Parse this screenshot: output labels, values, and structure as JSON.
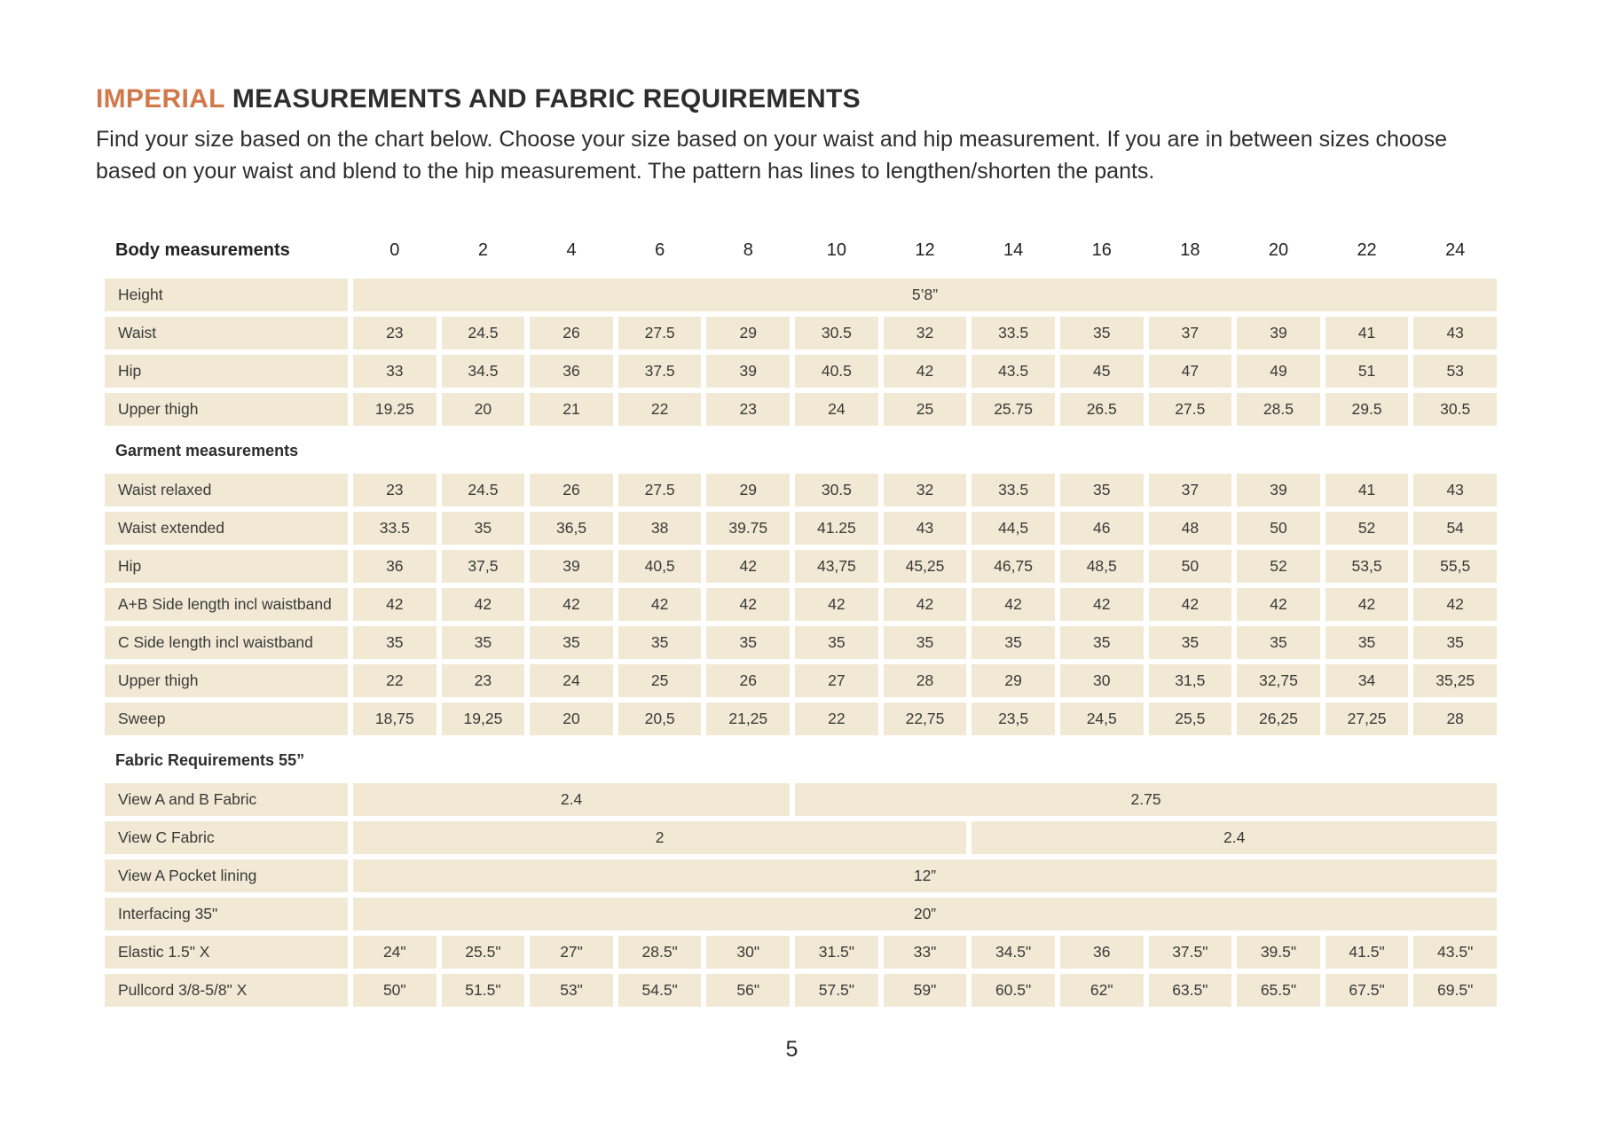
{
  "page": {
    "title_highlight": "IMPERIAL",
    "title_rest": " MEASUREMENTS AND FABRIC REQUIREMENTS",
    "intro": "Find your size based on the chart below. Choose your size based on your waist and hip measurement. If you are in between sizes choose based on your waist and blend to the hip measurement. The pattern has lines to lengthen/shorten the pants.",
    "page_number": "5"
  },
  "colors": {
    "accent_orange": "#d2794c",
    "cell_tan": "#f2e9d4",
    "text_dark": "#2d2d2d"
  },
  "table": {
    "header_label": "Body measurements",
    "sizes": [
      "0",
      "2",
      "4",
      "6",
      "8",
      "10",
      "12",
      "14",
      "16",
      "18",
      "20",
      "22",
      "24"
    ],
    "rows": [
      {
        "type": "span",
        "label": "Height",
        "spans": [
          {
            "cols": 13,
            "value": "5’8”"
          }
        ]
      },
      {
        "type": "cells",
        "label": "Waist",
        "values": [
          "23",
          "24.5",
          "26",
          "27.5",
          "29",
          "30.5",
          "32",
          "33.5",
          "35",
          "37",
          "39",
          "41",
          "43"
        ]
      },
      {
        "type": "cells",
        "label": "Hip",
        "values": [
          "33",
          "34.5",
          "36",
          "37.5",
          "39",
          "40.5",
          "42",
          "43.5",
          "45",
          "47",
          "49",
          "51",
          "53"
        ]
      },
      {
        "type": "cells",
        "label": "Upper thigh",
        "values": [
          "19.25",
          "20",
          "21",
          "22",
          "23",
          "24",
          "25",
          "25.75",
          "26.5",
          "27.5",
          "28.5",
          "29.5",
          "30.5"
        ]
      },
      {
        "type": "section",
        "label": "Garment measurements"
      },
      {
        "type": "cells",
        "label": "Waist relaxed",
        "values": [
          "23",
          "24.5",
          "26",
          "27.5",
          "29",
          "30.5",
          "32",
          "33.5",
          "35",
          "37",
          "39",
          "41",
          "43"
        ]
      },
      {
        "type": "cells",
        "label": "Waist extended",
        "values": [
          "33.5",
          "35",
          "36,5",
          "38",
          "39.75",
          "41.25",
          "43",
          "44,5",
          "46",
          "48",
          "50",
          "52",
          "54"
        ]
      },
      {
        "type": "cells",
        "label": "Hip",
        "values": [
          "36",
          "37,5",
          "39",
          "40,5",
          "42",
          "43,75",
          "45,25",
          "46,75",
          "48,5",
          "50",
          "52",
          "53,5",
          "55,5"
        ]
      },
      {
        "type": "cells",
        "label": "A+B Side length incl waistband",
        "values": [
          "42",
          "42",
          "42",
          "42",
          "42",
          "42",
          "42",
          "42",
          "42",
          "42",
          "42",
          "42",
          "42"
        ]
      },
      {
        "type": "cells",
        "label": "C Side length incl waistband",
        "values": [
          "35",
          "35",
          "35",
          "35",
          "35",
          "35",
          "35",
          "35",
          "35",
          "35",
          "35",
          "35",
          "35"
        ]
      },
      {
        "type": "cells",
        "label": "Upper thigh",
        "values": [
          "22",
          "23",
          "24",
          "25",
          "26",
          "27",
          "28",
          "29",
          "30",
          "31,5",
          "32,75",
          "34",
          "35,25"
        ]
      },
      {
        "type": "cells",
        "label": "Sweep",
        "values": [
          "18,75",
          "19,25",
          "20",
          "20,5",
          "21,25",
          "22",
          "22,75",
          "23,5",
          "24,5",
          "25,5",
          "26,25",
          "27,25",
          "28"
        ]
      },
      {
        "type": "section",
        "label": "Fabric Requirements 55”"
      },
      {
        "type": "span",
        "label": "View A  and B Fabric",
        "spans": [
          {
            "cols": 5,
            "value": "2.4"
          },
          {
            "cols": 8,
            "value": "2.75"
          }
        ]
      },
      {
        "type": "span",
        "label": "View C Fabric",
        "spans": [
          {
            "cols": 7,
            "value": "2"
          },
          {
            "cols": 6,
            "value": "2.4"
          }
        ]
      },
      {
        "type": "span",
        "label": "View A Pocket lining",
        "spans": [
          {
            "cols": 13,
            "value": "12”"
          }
        ]
      },
      {
        "type": "span",
        "label": "Interfacing 35\"",
        "spans": [
          {
            "cols": 13,
            "value": "20”"
          }
        ]
      },
      {
        "type": "cells",
        "label": "Elastic  1.5\" X",
        "values": [
          "24\"",
          "25.5\"",
          "27\"",
          "28.5\"",
          "30\"",
          "31.5\"",
          "33\"",
          "34.5\"",
          "36",
          "37.5\"",
          "39.5\"",
          "41.5\"",
          "43.5\""
        ]
      },
      {
        "type": "cells",
        "label": "Pullcord 3/8-5/8\" X",
        "values": [
          "50\"",
          "51.5\"",
          "53\"",
          "54.5\"",
          "56\"",
          "57.5\"",
          "59\"",
          "60.5\"",
          "62\"",
          "63.5\"",
          "65.5\"",
          "67.5\"",
          "69.5\""
        ]
      }
    ]
  }
}
